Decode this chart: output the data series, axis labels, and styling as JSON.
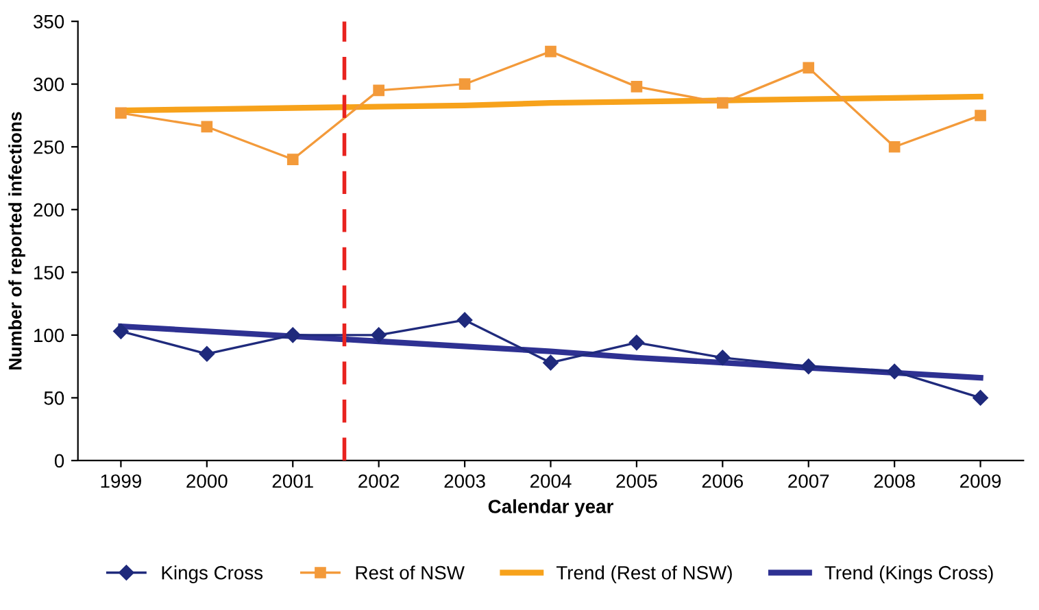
{
  "chart_data": {
    "type": "line",
    "xlabel": "Calendar year",
    "ylabel": "Number of reported infections",
    "x": [
      1999,
      2000,
      2001,
      2002,
      2003,
      2004,
      2005,
      2006,
      2007,
      2008,
      2009
    ],
    "xlim": [
      1998.5,
      2009.5
    ],
    "xticks": [
      1999,
      2000,
      2001,
      2002,
      2003,
      2004,
      2005,
      2006,
      2007,
      2008,
      2009
    ],
    "ylim": [
      0,
      350
    ],
    "yticks": [
      0,
      50,
      100,
      150,
      200,
      250,
      300,
      350
    ],
    "series": [
      {
        "name": "Kings Cross",
        "color": "#1f2a7c",
        "marker": "diamond",
        "values": [
          103,
          85,
          100,
          100,
          112,
          78,
          94,
          82,
          75,
          71,
          50
        ]
      },
      {
        "name": "Rest of NSW",
        "color": "#f39a3a",
        "marker": "square",
        "values": [
          277,
          266,
          240,
          295,
          300,
          326,
          298,
          285,
          313,
          250,
          275
        ]
      },
      {
        "name": "Trend (Rest of NSW)",
        "color": "#f7a21b",
        "marker": "none",
        "values": [
          279,
          280,
          281,
          282,
          283,
          285,
          286,
          287,
          288,
          289,
          290
        ]
      },
      {
        "name": "Trend (Kings Cross)",
        "color": "#2e3192",
        "marker": "none",
        "values": [
          107,
          103,
          99,
          95,
          91,
          87,
          82,
          78,
          74,
          70,
          66
        ]
      }
    ],
    "ref_lines": [
      {
        "axis": "x",
        "value": 2001.6,
        "color": "#e8231f",
        "line_style": "dashed"
      }
    ],
    "grid": false,
    "legend": "bottom"
  }
}
